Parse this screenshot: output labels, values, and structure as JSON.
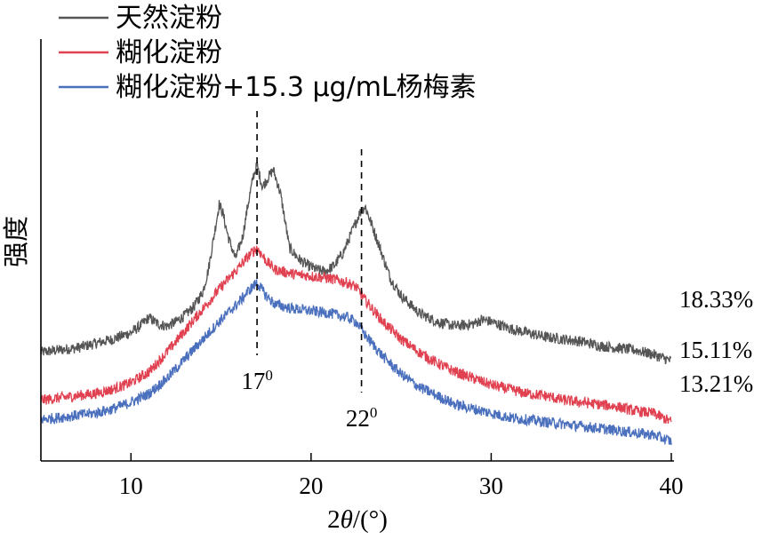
{
  "chart_data": {
    "type": "line",
    "xlabel_prefix": "2",
    "xlabel_theta": "θ",
    "xlabel_suffix": "/(°)",
    "ylabel": "强度",
    "xlim": [
      5,
      40
    ],
    "xticks": [
      "10",
      "20",
      "30",
      "40"
    ],
    "xtick_values": [
      10,
      20,
      30,
      40
    ],
    "grid": false,
    "legend_position": "top-left",
    "series": [
      {
        "name": "天然淀粉",
        "color": "#555555",
        "crystallinity": "18.33%",
        "x": [
          5,
          6,
          7,
          8,
          9,
          10,
          10.5,
          11,
          11.5,
          12,
          12.5,
          13,
          13.5,
          14,
          14.3,
          14.6,
          14.9,
          15.1,
          15.4,
          15.8,
          16.2,
          16.5,
          16.8,
          17.0,
          17.3,
          17.6,
          17.9,
          18.3,
          18.8,
          19.3,
          19.8,
          20.3,
          20.8,
          21.3,
          21.8,
          22.3,
          22.7,
          23.0,
          23.4,
          23.9,
          24.4,
          25,
          26,
          27,
          28,
          29,
          29.5,
          30,
          31,
          32,
          33,
          34,
          35,
          36,
          37,
          38,
          39,
          40
        ],
        "values": [
          0.52,
          0.53,
          0.54,
          0.56,
          0.58,
          0.61,
          0.64,
          0.68,
          0.65,
          0.64,
          0.66,
          0.69,
          0.73,
          0.8,
          0.9,
          1.05,
          1.2,
          1.16,
          1.05,
          0.95,
          1.05,
          1.2,
          1.33,
          1.38,
          1.28,
          1.32,
          1.36,
          1.25,
          1.0,
          0.95,
          0.92,
          0.9,
          0.89,
          0.92,
          0.98,
          1.08,
          1.16,
          1.19,
          1.1,
          0.98,
          0.86,
          0.78,
          0.7,
          0.66,
          0.64,
          0.65,
          0.67,
          0.66,
          0.63,
          0.61,
          0.59,
          0.58,
          0.57,
          0.55,
          0.54,
          0.53,
          0.51,
          0.48
        ]
      },
      {
        "name": "糊化淀粉",
        "color": "#e0404f",
        "crystallinity": "15.11%",
        "x": [
          5,
          6,
          7,
          8,
          9,
          10,
          11,
          12,
          13,
          14,
          15,
          16,
          16.5,
          17,
          17.5,
          18,
          19,
          20,
          21,
          22,
          22.5,
          23,
          24,
          25,
          26,
          27,
          28,
          29,
          30,
          31,
          32,
          33,
          34,
          35,
          36,
          37,
          38,
          39,
          40
        ],
        "values": [
          0.3,
          0.31,
          0.32,
          0.33,
          0.35,
          0.38,
          0.43,
          0.52,
          0.62,
          0.72,
          0.82,
          0.91,
          0.96,
          1.0,
          0.94,
          0.9,
          0.88,
          0.87,
          0.86,
          0.84,
          0.82,
          0.76,
          0.66,
          0.58,
          0.52,
          0.47,
          0.43,
          0.4,
          0.37,
          0.35,
          0.33,
          0.32,
          0.3,
          0.29,
          0.28,
          0.27,
          0.25,
          0.24,
          0.2
        ]
      },
      {
        "name": "糊化淀粉+15.3 μg/mL杨梅素",
        "color": "#4a6fbd",
        "crystallinity": "13.21%",
        "x": [
          5,
          6,
          7,
          8,
          9,
          10,
          11,
          12,
          13,
          14,
          15,
          16,
          16.5,
          17,
          17.5,
          18,
          19,
          20,
          21,
          22,
          22.5,
          23,
          24,
          25,
          26,
          27,
          28,
          29,
          30,
          31,
          32,
          33,
          34,
          35,
          36,
          37,
          38,
          39,
          40
        ],
        "values": [
          0.21,
          0.22,
          0.23,
          0.24,
          0.26,
          0.29,
          0.33,
          0.4,
          0.49,
          0.58,
          0.67,
          0.75,
          0.8,
          0.84,
          0.78,
          0.74,
          0.72,
          0.71,
          0.7,
          0.68,
          0.66,
          0.6,
          0.5,
          0.42,
          0.36,
          0.32,
          0.28,
          0.26,
          0.24,
          0.22,
          0.21,
          0.2,
          0.19,
          0.18,
          0.17,
          0.16,
          0.15,
          0.14,
          0.11
        ]
      }
    ],
    "annotations": [
      {
        "x": 17,
        "base": "17",
        "sup": "0"
      },
      {
        "x": 22.8,
        "base": "22",
        "sup": "0"
      }
    ]
  }
}
